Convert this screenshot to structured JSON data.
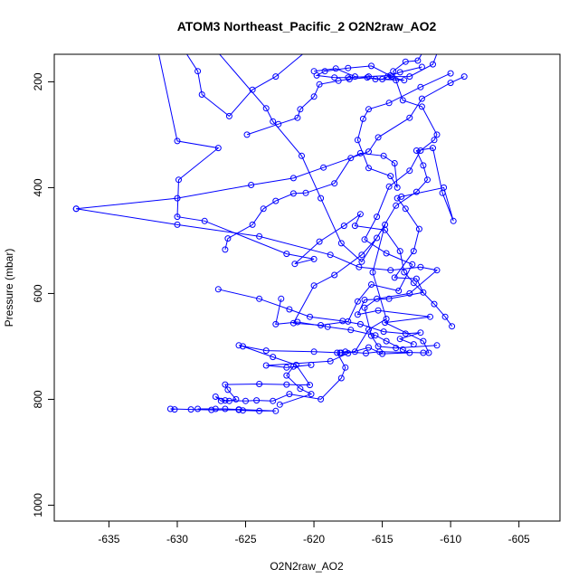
{
  "chart_data": {
    "type": "line",
    "title": "ATOM3 Northeast_Pacific_2 O2N2raw_AO2",
    "xlabel": "O2N2raw_AO2",
    "ylabel": "Pressure (mbar)",
    "xlim": [
      -639,
      -602
    ],
    "ylim": [
      1030,
      148
    ],
    "y_reversed": true,
    "x_ticks": [
      -635,
      -630,
      -625,
      -620,
      -615,
      -610,
      -605
    ],
    "x_tick_labels": [
      "-635",
      "-630",
      "-625",
      "-620",
      "-615",
      "-610",
      "-605"
    ],
    "y_ticks": [
      200,
      400,
      600,
      800,
      1000
    ],
    "y_tick_labels": [
      "200",
      "400",
      "600",
      "800",
      "1000"
    ],
    "grid": false,
    "colors": {
      "series": "#0000ff",
      "axis": "#000000"
    },
    "series": [
      {
        "points": [
          [
            -627.5,
            130
          ],
          [
            -623.5,
            250
          ],
          [
            -623.0,
            275
          ],
          [
            -620.9,
            340
          ],
          [
            -619.5,
            420
          ],
          [
            -618.0,
            505
          ],
          [
            -616.5,
            540
          ],
          [
            -614.8,
            470
          ],
          [
            -615.7,
            560
          ],
          [
            -614.7,
            648
          ],
          [
            -616.0,
            668
          ],
          [
            -617.0,
            710
          ],
          [
            -618.0,
            712
          ],
          [
            -620.0,
            710
          ],
          [
            -623.5,
            708
          ],
          [
            -625.5,
            698
          ],
          [
            -625.2,
            700
          ],
          [
            -623.0,
            720
          ],
          [
            -621.3,
            735
          ],
          [
            -620.3,
            773
          ],
          [
            -622.0,
            772
          ],
          [
            -624.0,
            771
          ],
          [
            -626.5,
            772
          ],
          [
            -626.3,
            782
          ],
          [
            -625.7,
            800
          ],
          [
            -626.2,
            803
          ],
          [
            -626.8,
            803
          ],
          [
            -627.2,
            795
          ],
          [
            -626.5,
            802
          ],
          [
            -625.0,
            803
          ],
          [
            -624.2,
            802
          ],
          [
            -623.0,
            803
          ],
          [
            -621.8,
            790
          ],
          [
            -619.5,
            800
          ],
          [
            -618.0,
            760
          ],
          [
            -617.7,
            740
          ],
          [
            -618.3,
            712
          ],
          [
            -618.1,
            712
          ],
          [
            -617.7,
            710
          ],
          [
            -616.2,
            713
          ],
          [
            -615.2,
            710
          ],
          [
            -612.0,
            712
          ],
          [
            -611.6,
            712
          ],
          [
            -612.0,
            690
          ],
          [
            -614.8,
            655
          ],
          [
            -611.5,
            644
          ],
          [
            -615.3,
            632
          ],
          [
            -616.8,
            640
          ],
          [
            -616.3,
            612
          ],
          [
            -614.5,
            610
          ],
          [
            -612.0,
            598
          ],
          [
            -612.5,
            572
          ],
          [
            -614.1,
            570
          ],
          [
            -612.7,
            520
          ],
          [
            -612.3,
            478
          ],
          [
            -613.3,
            440
          ],
          [
            -613.9,
            420
          ],
          [
            -613.6,
            417
          ],
          [
            -610.5,
            400
          ],
          [
            -609.8,
            463
          ],
          [
            -610.6,
            410
          ],
          [
            -611.3,
            325
          ],
          [
            -612.5,
            330
          ],
          [
            -612.0,
            358
          ],
          [
            -611.7,
            385
          ],
          [
            -612.5,
            408
          ],
          [
            -614.0,
            434
          ],
          [
            -615.4,
            495
          ],
          [
            -616.5,
            527
          ],
          [
            -618.5,
            565
          ],
          [
            -620.0,
            585
          ],
          [
            -621.5,
            656
          ],
          [
            -619.5,
            660
          ],
          [
            -617.5,
            653
          ],
          [
            -616.8,
            615
          ],
          [
            -615.8,
            583
          ],
          [
            -613.8,
            595
          ],
          [
            -612.8,
            545
          ],
          [
            -614.7,
            524
          ],
          [
            -616.3,
            498
          ],
          [
            -615.4,
            455
          ],
          [
            -614.5,
            398
          ],
          [
            -613.0,
            368
          ],
          [
            -612.2,
            330
          ],
          [
            -611.2,
            310
          ],
          [
            -611.0,
            300
          ],
          [
            -612.1,
            247
          ],
          [
            -613.5,
            235
          ],
          [
            -614.0,
            197
          ],
          [
            -614.2,
            180
          ],
          [
            -613.3,
            162
          ],
          [
            -612.4,
            160
          ],
          [
            -611.9,
            138
          ]
        ]
      },
      {
        "points": [
          [
            -620.0,
            130
          ],
          [
            -622.8,
            190
          ],
          [
            -624.5,
            215
          ],
          [
            -626.2,
            265
          ],
          [
            -628.2,
            224
          ],
          [
            -628.5,
            180
          ],
          [
            -629.5,
            140
          ]
        ]
      },
      {
        "points": [
          [
            -631.5,
            130
          ],
          [
            -630.0,
            312
          ],
          [
            -627.0,
            325
          ],
          [
            -629.9,
            385
          ],
          [
            -630.0,
            455
          ],
          [
            -628.0,
            463
          ],
          [
            -622.0,
            525
          ],
          [
            -620.0,
            535
          ],
          [
            -621.4,
            544
          ],
          [
            -619.6,
            502
          ],
          [
            -617.8,
            472
          ],
          [
            -616.6,
            450
          ],
          [
            -617.0,
            472
          ],
          [
            -614.8,
            480
          ],
          [
            -613.7,
            520
          ],
          [
            -613.4,
            560
          ],
          [
            -612.7,
            580
          ],
          [
            -611.2,
            620
          ],
          [
            -610.4,
            644
          ],
          [
            -609.9,
            662
          ]
        ]
      },
      {
        "points": [
          [
            -637.4,
            440
          ],
          [
            -630.0,
            420
          ],
          [
            -624.6,
            395
          ],
          [
            -621.5,
            382
          ],
          [
            -619.3,
            362
          ],
          [
            -616.0,
            332
          ],
          [
            -615.3,
            305
          ],
          [
            -613.0,
            268
          ],
          [
            -612.1,
            232
          ],
          [
            -610.0,
            202
          ],
          [
            -609.0,
            190
          ]
        ]
      },
      {
        "points": [
          [
            -637.4,
            440
          ],
          [
            -630.0,
            470
          ],
          [
            -624.0,
            492
          ],
          [
            -618.8,
            527
          ],
          [
            -616.7,
            550
          ],
          [
            -614.4,
            556
          ],
          [
            -612.2,
            550
          ],
          [
            -611.0,
            556
          ],
          [
            -613.0,
            600
          ],
          [
            -615.4,
            610
          ],
          [
            -616.3,
            627
          ],
          [
            -615.8,
            680
          ],
          [
            -615.3,
            700
          ],
          [
            -614.0,
            703
          ],
          [
            -611.0,
            698
          ]
        ]
      },
      {
        "points": [
          [
            -627.0,
            592
          ],
          [
            -624.0,
            610
          ],
          [
            -621.8,
            630
          ],
          [
            -620.3,
            644
          ],
          [
            -617.9,
            652
          ],
          [
            -616.6,
            658
          ],
          [
            -614.9,
            672
          ],
          [
            -613.3,
            676
          ],
          [
            -612.2,
            674
          ],
          [
            -613.7,
            686
          ],
          [
            -612.7,
            696
          ]
        ]
      },
      {
        "points": [
          [
            -630.2,
            819
          ],
          [
            -630.5,
            818
          ],
          [
            -629.0,
            819
          ],
          [
            -627.5,
            820
          ],
          [
            -625.5,
            820
          ],
          [
            -625.2,
            821
          ],
          [
            -624.0,
            822
          ],
          [
            -622.8,
            822
          ],
          [
            -625.5,
            819
          ],
          [
            -626.5,
            818
          ],
          [
            -627.2,
            818
          ],
          [
            -628.5,
            818
          ]
        ]
      },
      {
        "points": [
          [
            -622.5,
            810
          ],
          [
            -620.2,
            790
          ],
          [
            -621.0,
            780
          ],
          [
            -622.0,
            755
          ],
          [
            -621.5,
            738
          ],
          [
            -620.2,
            735
          ],
          [
            -622.0,
            740
          ],
          [
            -623.5,
            736
          ],
          [
            -618.8,
            728
          ],
          [
            -617.5,
            713
          ],
          [
            -616.0,
            702
          ],
          [
            -615.0,
            714
          ],
          [
            -613.0,
            712
          ],
          [
            -613.5,
            706
          ],
          [
            -614.7,
            690
          ],
          [
            -615.5,
            679
          ],
          [
            -617.3,
            669
          ],
          [
            -619.0,
            663
          ],
          [
            -621.2,
            654
          ],
          [
            -622.8,
            658
          ],
          [
            -622.4,
            610
          ]
        ]
      },
      {
        "points": [
          [
            -626.5,
            517
          ],
          [
            -626.3,
            496
          ],
          [
            -624.5,
            470
          ],
          [
            -623.7,
            440
          ],
          [
            -622.8,
            425
          ],
          [
            -621.5,
            411
          ],
          [
            -620.6,
            410
          ],
          [
            -618.5,
            392
          ],
          [
            -617.3,
            344
          ],
          [
            -616.6,
            335
          ],
          [
            -614.9,
            340
          ],
          [
            -614.1,
            354
          ],
          [
            -613.9,
            400
          ],
          [
            -614.4,
            378
          ],
          [
            -616.0,
            363
          ],
          [
            -616.8,
            310
          ],
          [
            -616.4,
            270
          ],
          [
            -616.0,
            252
          ],
          [
            -614.5,
            240
          ],
          [
            -612.2,
            210
          ],
          [
            -610.0,
            184
          ]
        ]
      },
      {
        "points": [
          [
            -624.9,
            300
          ],
          [
            -622.6,
            280
          ],
          [
            -621.2,
            268
          ],
          [
            -621.0,
            252
          ],
          [
            -620.0,
            228
          ],
          [
            -619.6,
            205
          ],
          [
            -618.2,
            198
          ],
          [
            -617.4,
            195
          ],
          [
            -616.1,
            192
          ],
          [
            -615.5,
            195
          ],
          [
            -613.4,
            197
          ],
          [
            -614.6,
            190
          ],
          [
            -613.7,
            182
          ],
          [
            -612.1,
            172
          ]
        ]
      },
      {
        "points": [
          [
            -620.0,
            180
          ],
          [
            -618.4,
            175
          ],
          [
            -617.0,
            190
          ],
          [
            -615.0,
            195
          ],
          [
            -614.4,
            188
          ],
          [
            -616.0,
            190
          ],
          [
            -617.5,
            192
          ],
          [
            -618.5,
            192
          ],
          [
            -619.8,
            188
          ],
          [
            -619.2,
            180
          ],
          [
            -617.5,
            174
          ],
          [
            -615.8,
            170
          ],
          [
            -614.3,
            190
          ],
          [
            -613.0,
            190
          ],
          [
            -611.3,
            167
          ],
          [
            -610.9,
            140
          ]
        ]
      }
    ]
  }
}
